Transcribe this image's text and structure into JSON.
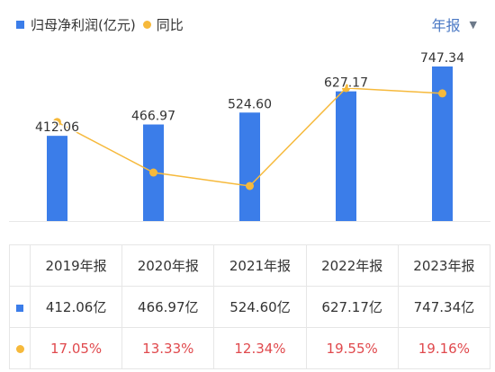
{
  "legend": {
    "bar_label": "归母净利润(亿元)",
    "line_label": "同比"
  },
  "period_selector": {
    "label": "年报",
    "caret": "▼"
  },
  "colors": {
    "bar": "#3b7de9",
    "line": "#f6b93b",
    "pct_text": "#e0494d"
  },
  "chart_data": {
    "type": "bar",
    "categories": [
      "2019年报",
      "2020年报",
      "2021年报",
      "2022年报",
      "2023年报"
    ],
    "series": [
      {
        "name": "归母净利润(亿元)",
        "type": "bar",
        "values": [
          412.06,
          466.97,
          524.6,
          627.17,
          747.34
        ],
        "labels": [
          "412.06",
          "466.97",
          "524.60",
          "627.17",
          "747.34"
        ]
      },
      {
        "name": "同比",
        "type": "line",
        "values": [
          17.05,
          13.33,
          12.34,
          19.55,
          19.16
        ]
      }
    ],
    "grid": false,
    "legend_position": "top-left"
  },
  "table": {
    "headers": [
      "2019年报",
      "2020年报",
      "2021年报",
      "2022年报",
      "2023年报"
    ],
    "profit_row": [
      "412.06亿",
      "466.97亿",
      "524.60亿",
      "627.17亿",
      "747.34亿"
    ],
    "growth_row": [
      "17.05%",
      "13.33%",
      "12.34%",
      "19.55%",
      "19.16%"
    ]
  }
}
